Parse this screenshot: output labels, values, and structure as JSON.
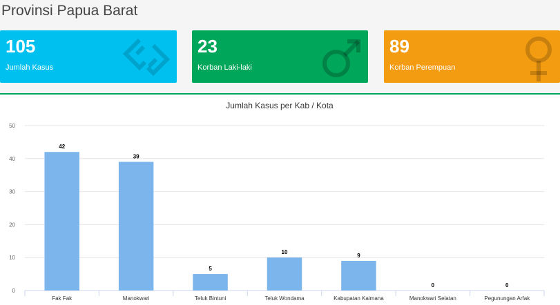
{
  "page_title": "Provinsi Papua Barat",
  "boxes": {
    "cases": {
      "value": "105",
      "label": "Jumlah Kasus",
      "color": "#00c0ef",
      "icon": "link-chain-icon"
    },
    "male": {
      "value": "23",
      "label": "Korban Laki-laki",
      "color": "#00a65a",
      "icon": "male-symbol-icon"
    },
    "female": {
      "value": "89",
      "label": "Korban Perempuan",
      "color": "#f39c12",
      "icon": "female-symbol-icon"
    }
  },
  "chart_data": {
    "type": "bar",
    "title": "Jumlah Kasus per Kab / Kota",
    "categories": [
      "Fak Fak",
      "Manokwari",
      "Teluk Bintuni",
      "Teluk Wondama",
      "Kabupatan Kaimana",
      "Manokwari Selatan",
      "Pegunungan Arfak"
    ],
    "values": [
      42,
      39,
      5,
      10,
      9,
      0,
      0
    ],
    "ylim": [
      0,
      50
    ],
    "yticks": [
      0,
      10,
      20,
      30,
      40,
      50
    ],
    "grid": true,
    "bar_color": "#7cb5ec",
    "data_labels": true
  }
}
